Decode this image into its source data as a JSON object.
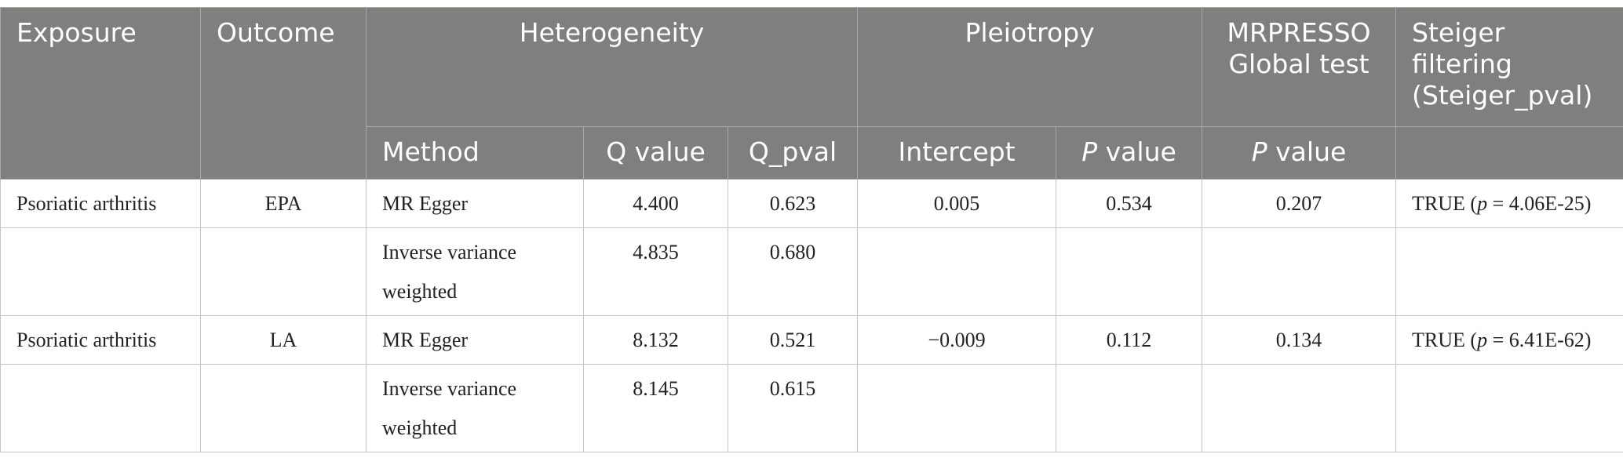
{
  "table": {
    "header1": [
      "Exposure",
      "Outcome",
      "Heterogeneity",
      "Pleiotropy",
      "MRPRESSO Global test",
      "Steiger filtering (Steiger_pval)"
    ],
    "header2": [
      "Method",
      "Q value",
      "Q_pval",
      "Intercept",
      "P value",
      "P value"
    ],
    "rows": [
      [
        "Psoriatic arthritis",
        "EPA",
        "MR Egger",
        "4.400",
        "0.623",
        "0.005",
        "0.534",
        "0.207",
        {
          "pre": "TRUE (",
          "italic": "p",
          "post": " = 4.06E-25)"
        }
      ],
      [
        null,
        null,
        "Inverse variance weighted",
        "4.835",
        "0.680",
        null,
        null,
        null,
        null
      ],
      [
        "Psoriatic arthritis",
        "LA",
        "MR Egger",
        "8.132",
        "0.521",
        "−0.009",
        "0.112",
        "0.134",
        {
          "pre": "TRUE (",
          "italic": "p",
          "post": " = 6.41E-62)"
        }
      ],
      [
        null,
        null,
        "Inverse variance weighted",
        "8.145",
        "0.615",
        null,
        null,
        null,
        null
      ]
    ]
  }
}
